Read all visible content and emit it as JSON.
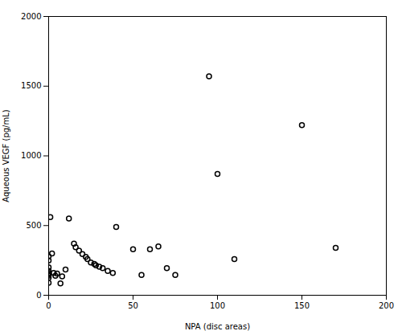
{
  "chart_data": {
    "type": "scatter",
    "x": [
      0,
      0,
      0,
      0,
      0,
      0,
      0,
      0,
      0,
      1,
      2,
      3,
      4,
      5,
      7,
      8,
      10,
      12,
      15,
      16,
      18,
      20,
      22,
      23,
      25,
      27,
      28,
      30,
      32,
      35,
      38,
      40,
      50,
      55,
      60,
      65,
      70,
      75,
      95,
      100,
      110,
      150,
      170
    ],
    "values": [
      280,
      250,
      200,
      175,
      160,
      150,
      140,
      125,
      90,
      560,
      300,
      160,
      140,
      155,
      85,
      135,
      185,
      550,
      370,
      345,
      320,
      295,
      275,
      260,
      235,
      225,
      215,
      205,
      195,
      175,
      160,
      490,
      330,
      145,
      330,
      350,
      195,
      145,
      1570,
      870,
      260,
      1220,
      340
    ],
    "xlim": [
      0,
      200
    ],
    "ylim": [
      0,
      2000
    ],
    "xticks": [
      0,
      50,
      100,
      150,
      200
    ],
    "yticks": [
      0,
      500,
      1000,
      1500,
      2000
    ],
    "xlabel": "NPA (disc areas)",
    "ylabel": "Aqueous VEGF (pg/mL)",
    "grid": false
  }
}
